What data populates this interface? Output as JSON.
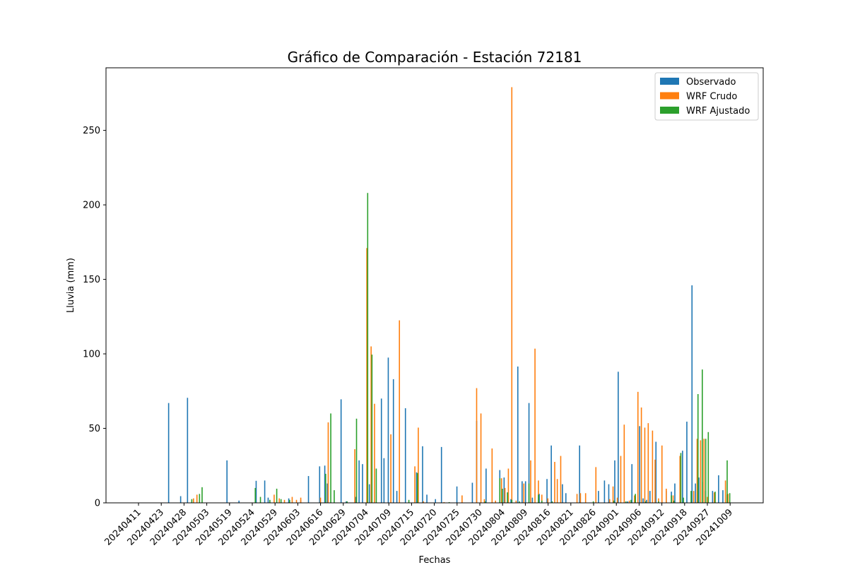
{
  "chart_data": {
    "type": "bar",
    "title": "Gráfico de Comparación - Estación 72181",
    "xlabel": "Fechas",
    "ylabel": "Lluvia (mm)",
    "ylim": [
      0,
      292
    ],
    "yticks": [
      0,
      50,
      100,
      150,
      200,
      250
    ],
    "xtick_labels": [
      "20240411",
      "20240423",
      "20240428",
      "20240503",
      "20240519",
      "20240524",
      "20240529",
      "20240603",
      "20240616",
      "20240629",
      "20240704",
      "20240709",
      "20240715",
      "20240720",
      "20240725",
      "20240730",
      "20240804",
      "20240809",
      "20240816",
      "20240821",
      "20240826",
      "20240901",
      "20240906",
      "20240912",
      "20240918",
      "20240927",
      "20241009"
    ],
    "legend_position": "top-right",
    "series": [
      {
        "name": "Observado",
        "color": "#1f77b4",
        "points": [
          [
            2.65,
            67
          ],
          [
            3.35,
            4.5
          ],
          [
            3.75,
            70.5
          ],
          [
            6.05,
            28.5
          ],
          [
            6.75,
            1.5
          ],
          [
            7.75,
            14.8
          ],
          [
            8.25,
            15
          ],
          [
            8.45,
            3.5
          ],
          [
            9.65,
            3
          ],
          [
            10.35,
            2
          ],
          [
            10.8,
            18
          ],
          [
            11.45,
            24.5
          ],
          [
            11.75,
            25
          ],
          [
            11.9,
            13
          ],
          [
            12.7,
            69.5
          ],
          [
            13.0,
            1
          ],
          [
            13.55,
            4
          ],
          [
            13.75,
            28.5
          ],
          [
            13.95,
            26
          ],
          [
            14.35,
            12.5
          ],
          [
            15.05,
            70
          ],
          [
            15.2,
            30
          ],
          [
            15.45,
            97.5
          ],
          [
            15.75,
            83
          ],
          [
            15.95,
            8
          ],
          [
            16.45,
            63.5
          ],
          [
            17.1,
            20.5
          ],
          [
            17.45,
            38
          ],
          [
            17.7,
            5.5
          ],
          [
            18.2,
            2.5
          ],
          [
            18.55,
            37.5
          ],
          [
            19.45,
            11
          ],
          [
            20.35,
            13.5
          ],
          [
            20.6,
            55
          ],
          [
            21.15,
            23
          ],
          [
            21.95,
            22
          ],
          [
            22.2,
            17
          ],
          [
            22.4,
            7
          ],
          [
            22.6,
            2.5
          ],
          [
            23.0,
            91.5
          ],
          [
            23.25,
            14.5
          ],
          [
            23.45,
            14.5
          ],
          [
            23.65,
            67
          ],
          [
            23.85,
            3.5
          ],
          [
            24.25,
            6
          ],
          [
            24.7,
            16
          ],
          [
            24.95,
            38.5
          ],
          [
            25.6,
            12.5
          ],
          [
            25.8,
            6.5
          ],
          [
            26.6,
            38.5
          ],
          [
            27.7,
            8
          ],
          [
            28.05,
            15
          ],
          [
            28.3,
            12.5
          ],
          [
            28.65,
            28.5
          ],
          [
            28.85,
            88
          ],
          [
            29.4,
            1
          ],
          [
            29.65,
            26
          ],
          [
            29.85,
            4
          ],
          [
            30.1,
            51.5
          ],
          [
            30.3,
            3
          ],
          [
            30.5,
            2
          ],
          [
            30.7,
            8
          ],
          [
            31.05,
            41
          ],
          [
            31.65,
            8
          ],
          [
            31.95,
            7.5
          ],
          [
            32.15,
            13
          ],
          [
            32.6,
            35
          ],
          [
            32.85,
            54.5
          ],
          [
            33.15,
            146
          ],
          [
            33.35,
            13
          ],
          [
            33.55,
            17
          ],
          [
            33.75,
            14
          ],
          [
            33.95,
            8
          ],
          [
            34.35,
            8
          ],
          [
            34.7,
            18.5
          ],
          [
            34.95,
            8.5
          ],
          [
            35.2,
            5.5
          ]
        ]
      },
      {
        "name": "WRF Crudo",
        "color": "#ff7f0e",
        "points": [
          [
            4.1,
            3
          ],
          [
            4.3,
            5.5
          ],
          [
            8.8,
            5.5
          ],
          [
            9.1,
            3
          ],
          [
            9.4,
            2
          ],
          [
            9.85,
            4
          ],
          [
            10.1,
            2
          ],
          [
            10.35,
            3.5
          ],
          [
            11.5,
            3.5
          ],
          [
            11.95,
            54
          ],
          [
            13.5,
            36
          ],
          [
            14.2,
            171
          ],
          [
            14.45,
            105
          ],
          [
            14.65,
            66.5
          ],
          [
            15.6,
            46
          ],
          [
            16.1,
            122.5
          ],
          [
            17.0,
            24.5
          ],
          [
            17.2,
            50.5
          ],
          [
            17.5,
            1
          ],
          [
            18.7,
            0.5
          ],
          [
            19.75,
            5
          ],
          [
            20.6,
            77
          ],
          [
            20.85,
            60
          ],
          [
            21.05,
            2.5
          ],
          [
            21.5,
            36.5
          ],
          [
            21.7,
            1.5
          ],
          [
            22.05,
            16.5
          ],
          [
            22.25,
            10
          ],
          [
            22.45,
            23
          ],
          [
            22.65,
            279
          ],
          [
            22.9,
            1.5
          ],
          [
            23.35,
            13
          ],
          [
            23.75,
            28.5
          ],
          [
            24.0,
            103.5
          ],
          [
            24.2,
            15
          ],
          [
            24.4,
            5.5
          ],
          [
            24.75,
            3
          ],
          [
            25.15,
            27.5
          ],
          [
            25.3,
            16
          ],
          [
            25.5,
            31.5
          ],
          [
            26.45,
            6
          ],
          [
            26.65,
            6.5
          ],
          [
            26.95,
            6.5
          ],
          [
            27.55,
            24
          ],
          [
            28.35,
            2.5
          ],
          [
            28.55,
            11
          ],
          [
            28.8,
            3.5
          ],
          [
            29.0,
            31.5
          ],
          [
            29.2,
            52.5
          ],
          [
            29.5,
            1.5
          ],
          [
            29.8,
            5
          ],
          [
            30.0,
            74.5
          ],
          [
            30.2,
            64
          ],
          [
            30.4,
            50.5
          ],
          [
            30.6,
            53.5
          ],
          [
            30.85,
            48.5
          ],
          [
            31.0,
            29
          ],
          [
            31.2,
            3
          ],
          [
            31.4,
            38.5
          ],
          [
            31.65,
            9.5
          ],
          [
            32.05,
            5
          ],
          [
            32.45,
            31.5
          ],
          [
            33.25,
            8
          ],
          [
            33.45,
            43
          ],
          [
            33.65,
            42
          ],
          [
            33.85,
            43
          ],
          [
            34.05,
            4
          ],
          [
            34.45,
            7
          ],
          [
            35.1,
            15
          ],
          [
            35.25,
            6
          ]
        ]
      },
      {
        "name": "WRF Ajustado",
        "color": "#2ca02c",
        "points": [
          [
            4.0,
            2.5
          ],
          [
            4.45,
            6
          ],
          [
            4.6,
            10.5
          ],
          [
            7.7,
            10
          ],
          [
            8.0,
            4
          ],
          [
            8.55,
            2
          ],
          [
            8.95,
            9.5
          ],
          [
            9.2,
            2.5
          ],
          [
            9.7,
            2
          ],
          [
            11.8,
            19.5
          ],
          [
            12.1,
            60
          ],
          [
            12.3,
            8.5
          ],
          [
            13.05,
            1
          ],
          [
            13.6,
            56.5
          ],
          [
            14.25,
            208
          ],
          [
            14.5,
            99.5
          ],
          [
            14.75,
            23
          ],
          [
            16.65,
            2
          ],
          [
            17.15,
            20
          ],
          [
            19.0,
            0.5
          ],
          [
            21.1,
            1
          ],
          [
            21.95,
            16.5
          ],
          [
            22.1,
            9.5
          ],
          [
            22.4,
            7
          ],
          [
            22.65,
            2
          ],
          [
            23.1,
            1
          ],
          [
            23.65,
            13
          ],
          [
            24.2,
            5.5
          ],
          [
            24.4,
            1.5
          ],
          [
            25.0,
            1
          ],
          [
            27.4,
            1
          ],
          [
            28.6,
            1.5
          ],
          [
            29.3,
            1
          ],
          [
            29.6,
            2
          ],
          [
            29.85,
            6
          ],
          [
            30.45,
            1
          ],
          [
            31.2,
            1
          ],
          [
            31.95,
            5
          ],
          [
            32.1,
            1.5
          ],
          [
            32.5,
            33.5
          ],
          [
            32.65,
            3.5
          ],
          [
            33.1,
            8
          ],
          [
            33.5,
            73
          ],
          [
            33.75,
            89.5
          ],
          [
            33.95,
            43
          ],
          [
            34.1,
            47.5
          ],
          [
            34.5,
            7.5
          ],
          [
            35.2,
            28.5
          ],
          [
            35.35,
            6.5
          ]
        ]
      }
    ]
  }
}
